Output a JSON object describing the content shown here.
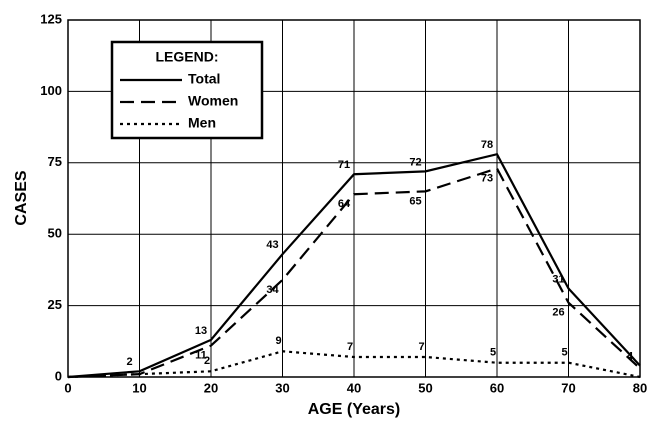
{
  "chart_data": {
    "type": "line",
    "xlabel": "AGE (Years)",
    "ylabel": "CASES",
    "x": [
      0,
      10,
      20,
      30,
      40,
      50,
      60,
      70,
      80
    ],
    "series": [
      {
        "name": "Total",
        "color": "#000000",
        "dash": "solid",
        "values": [
          0,
          2,
          13,
          43,
          71,
          72,
          78,
          31,
          4
        ],
        "value_labels": [
          null,
          "2",
          "13",
          "43",
          "71",
          "72",
          "78",
          "31",
          "4"
        ]
      },
      {
        "name": "Women",
        "color": "#000000",
        "dash": "dashed",
        "values": [
          0,
          1,
          11,
          34,
          64,
          65,
          73,
          26,
          3
        ],
        "value_labels": [
          null,
          null,
          "11",
          "34",
          "64",
          "65",
          "73",
          "26",
          null
        ]
      },
      {
        "name": "Men",
        "color": "#000000",
        "dash": "dotted",
        "values": [
          0,
          1,
          2,
          9,
          7,
          7,
          5,
          5,
          0
        ],
        "value_labels": [
          null,
          null,
          "2",
          "9",
          "7",
          "7",
          "5",
          "5",
          null
        ]
      }
    ],
    "xlim": [
      0,
      80
    ],
    "xticks": [
      0,
      10,
      20,
      30,
      40,
      50,
      60,
      70,
      80
    ],
    "ylim": [
      0,
      125
    ],
    "yticks": [
      0,
      25,
      50,
      75,
      100,
      125
    ],
    "grid": true,
    "legend_title": "LEGEND:",
    "legend": "upper left"
  }
}
